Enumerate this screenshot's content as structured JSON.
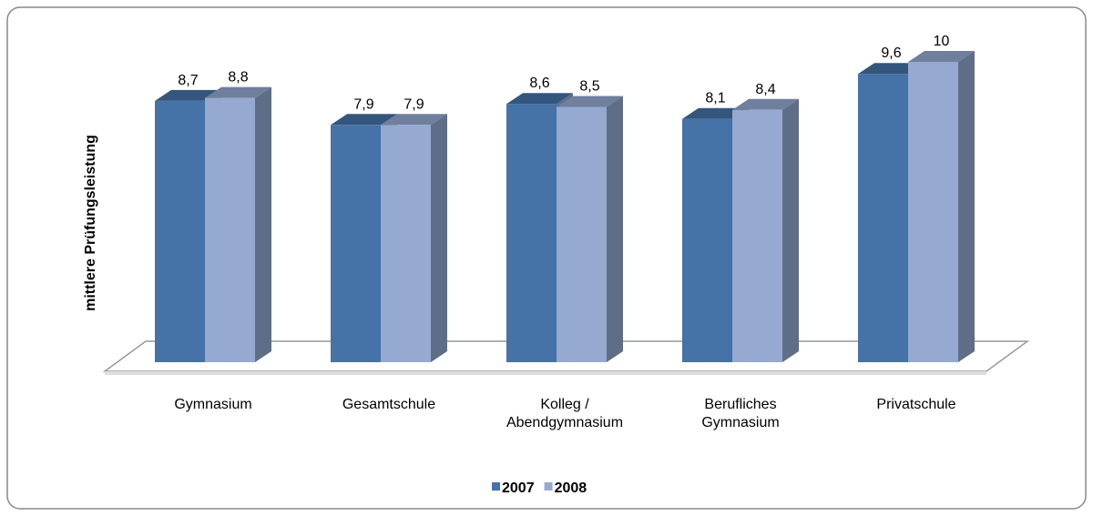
{
  "chart_data": {
    "type": "bar3d",
    "y_label": "mittlere Prüfungsleistung",
    "categories": [
      "Gymnasium",
      "Gesamtschule",
      "Kolleg / Abendgymnasium",
      "Berufliches Gymnasium",
      "Privatschule"
    ],
    "series": [
      {
        "name": "2007",
        "color": "#4572a7",
        "values": [
          8.7,
          7.9,
          8.6,
          8.1,
          9.6
        ],
        "value_labels": [
          "8,7",
          "7,9",
          "8,6",
          "8,1",
          "9,6"
        ]
      },
      {
        "name": "2008",
        "color": "#95a9d1",
        "values": [
          8.8,
          7.9,
          8.5,
          8.4,
          10
        ],
        "value_labels": [
          "8,8",
          "7,9",
          "8,5",
          "8,4",
          "10"
        ]
      }
    ]
  }
}
